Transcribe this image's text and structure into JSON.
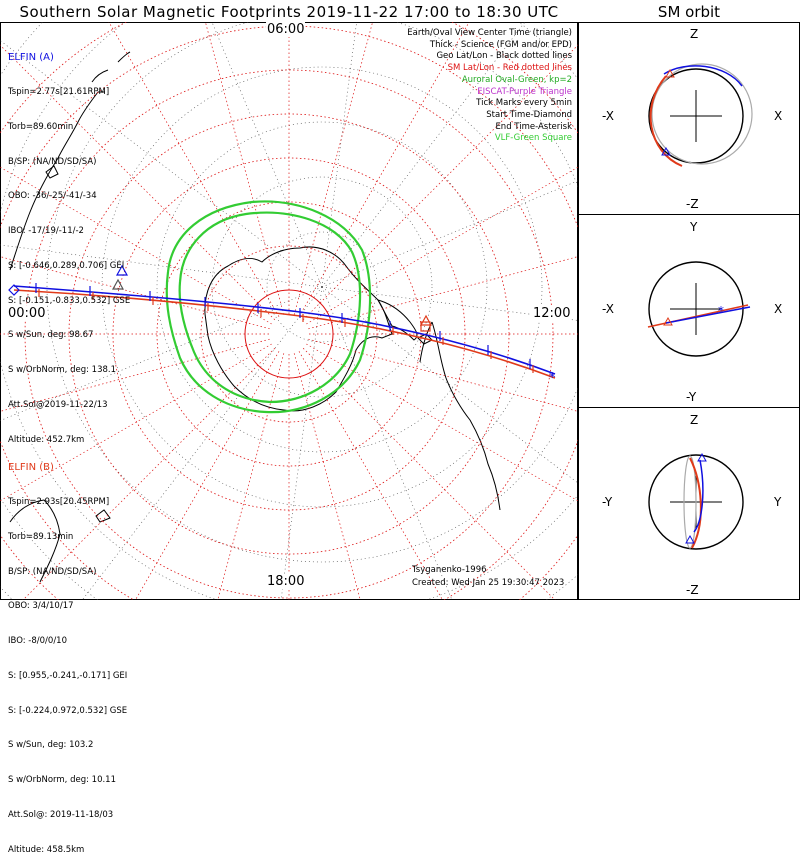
{
  "title": "Southern Solar Magnetic Footprints 2019-11-22 17:00 to 18:30 UTC",
  "orbit_title": "SM orbit",
  "colors": {
    "elfin_a": "#1010e0",
    "elfin_b": "#e03a1a",
    "sm_grid": "#dd1111",
    "geo_grid": "#000000",
    "auroral_oval": "#22cc22",
    "eiscat": "#bb33cc",
    "vlf": "#33cc33"
  },
  "map": {
    "lt_labels": {
      "top": "06:00",
      "left": "00:00",
      "right": "12:00",
      "bottom": "18:00"
    },
    "model": "Tsyganenko-1996",
    "created": "Created: Wed Jan 25 19:30:47 2023"
  },
  "elfin_a": {
    "header": "ELFIN (A)",
    "lines": [
      "Tspin=2.77s[21.61RPM]",
      "Torb=89.60min",
      "B/SP: (NA/ND/SD/SA)",
      "OBO: -36/-25/-41/-34",
      "IBO: -17/19/-11/-2",
      "S: [-0.646,0.289,0.706] GEI",
      "S: [-0.151,-0.833,0.532] GSE",
      "S w/Sun, deg: 98.67",
      "S w/OrbNorm, deg: 138.1",
      "Att.Sol@2019-11-22/13",
      "Altitude: 452.7km"
    ]
  },
  "elfin_b": {
    "header": "ELFIN (B)",
    "lines": [
      "Tspin=2.93s[20.45RPM]",
      "Torb=89.13min",
      "B/SP: (NA/ND/SD/SA)",
      "OBO: 3/4/10/17",
      "IBO: -8/0/0/10",
      "S: [0.955,-0.241,-0.171] GEI",
      "S: [-0.224,0.972,0.532] GSE",
      "S w/Sun, deg: 103.2",
      "S w/OrbNorm, deg: 10.11",
      "Att.Sol@: 2019-11-18/03",
      "Altitude: 458.5km"
    ]
  },
  "legend": [
    {
      "text": "Earth/Oval View Center Time (triangle)",
      "color": "#000000"
    },
    {
      "text": "Thick - Science (FGM and/or EPD)",
      "color": "#000000"
    },
    {
      "text": "Geo Lat/Lon - Black dotted lines",
      "color": "#000000"
    },
    {
      "text": "SM Lat/Lon - Red dotted lines",
      "color": "#dd1111"
    },
    {
      "text": "Auroral Oval-Green, kp=2",
      "color": "#22aa22"
    },
    {
      "text": "EISCAT-Purple Triangle",
      "color": "#bb33cc"
    },
    {
      "text": "Tick Marks every 5min",
      "color": "#000000"
    },
    {
      "text": "Start Time-Diamond",
      "color": "#000000"
    },
    {
      "text": "End Time-Asterisk",
      "color": "#000000"
    },
    {
      "text": "VLF-Green Square",
      "color": "#33cc33"
    }
  ],
  "orbit_panels": [
    {
      "top": "Z",
      "bottom": "-Z",
      "left": "-X",
      "right": "X"
    },
    {
      "top": "Y",
      "bottom": "-Y",
      "left": "-X",
      "right": "X"
    },
    {
      "top": "Z",
      "bottom": "-Z",
      "left": "-Y",
      "right": "Y"
    }
  ]
}
